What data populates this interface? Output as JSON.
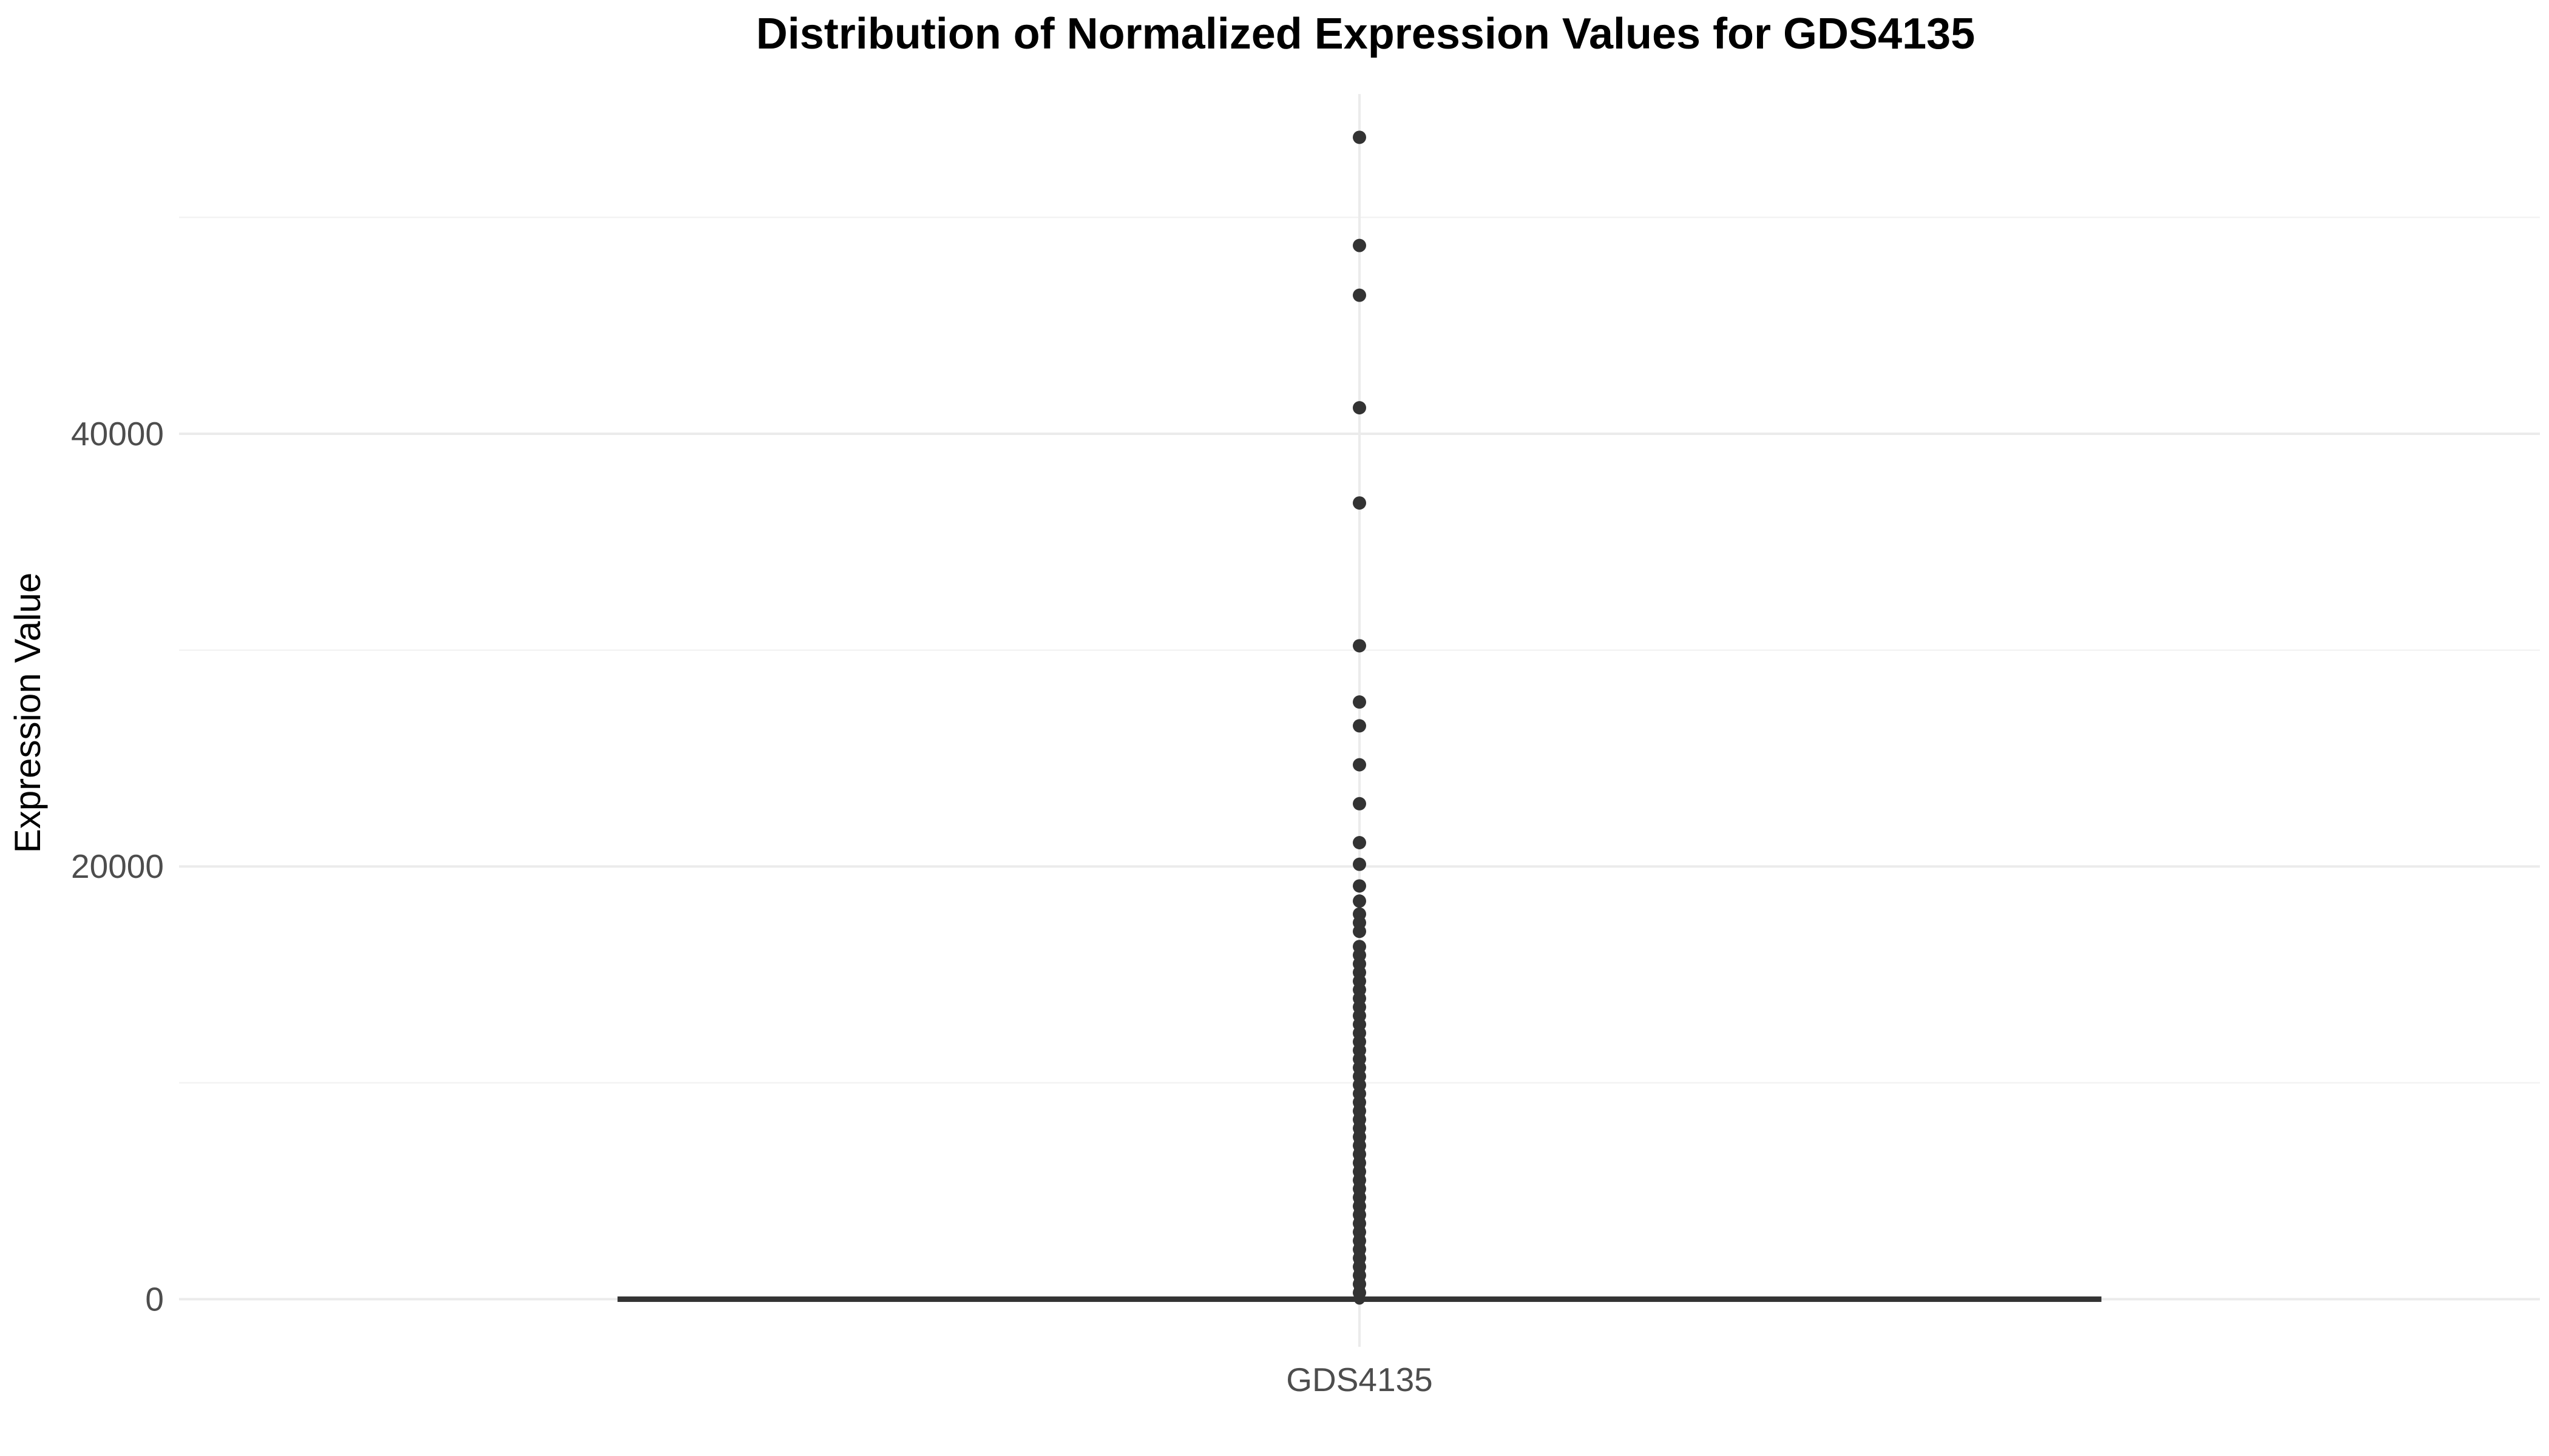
{
  "chart_data": {
    "type": "boxplot",
    "title": "Distribution of Normalized Expression Values for GDS4135",
    "xlabel": "",
    "ylabel": "Expression Value",
    "categories": [
      "GDS4135"
    ],
    "ylim": [
      -2200,
      55700
    ],
    "y_major_ticks": [
      0,
      20000,
      40000
    ],
    "y_tick_labels": [
      "0",
      "20000",
      "40000"
    ],
    "y_minor_gridlines": [
      10000,
      30000,
      50000
    ],
    "grid": true,
    "legend": "none",
    "box": {
      "min": 0,
      "q1": 0,
      "median": 0,
      "q3": 0,
      "max": 0
    },
    "outliers": [
      53700,
      48700,
      46400,
      41200,
      36800,
      30200,
      27600,
      26500,
      24700,
      22900,
      21100,
      20100,
      19100,
      18400,
      17800,
      17400,
      17000,
      16300,
      15900,
      15500,
      15100,
      14700,
      14300,
      13900,
      13500,
      13100,
      12700,
      12300,
      11900,
      11500,
      11100,
      10700,
      10300,
      9900,
      9500,
      9100,
      8700,
      8300,
      7900,
      7500,
      7100,
      6700,
      6300,
      5900,
      5500,
      5100,
      4700,
      4300,
      3900,
      3500,
      3100,
      2700,
      2300,
      1900,
      1500,
      1100,
      700,
      300
    ],
    "colors": {
      "points": "#333333",
      "box": "#333333",
      "grid": "#ebebeb",
      "background": "#ffffff"
    }
  }
}
